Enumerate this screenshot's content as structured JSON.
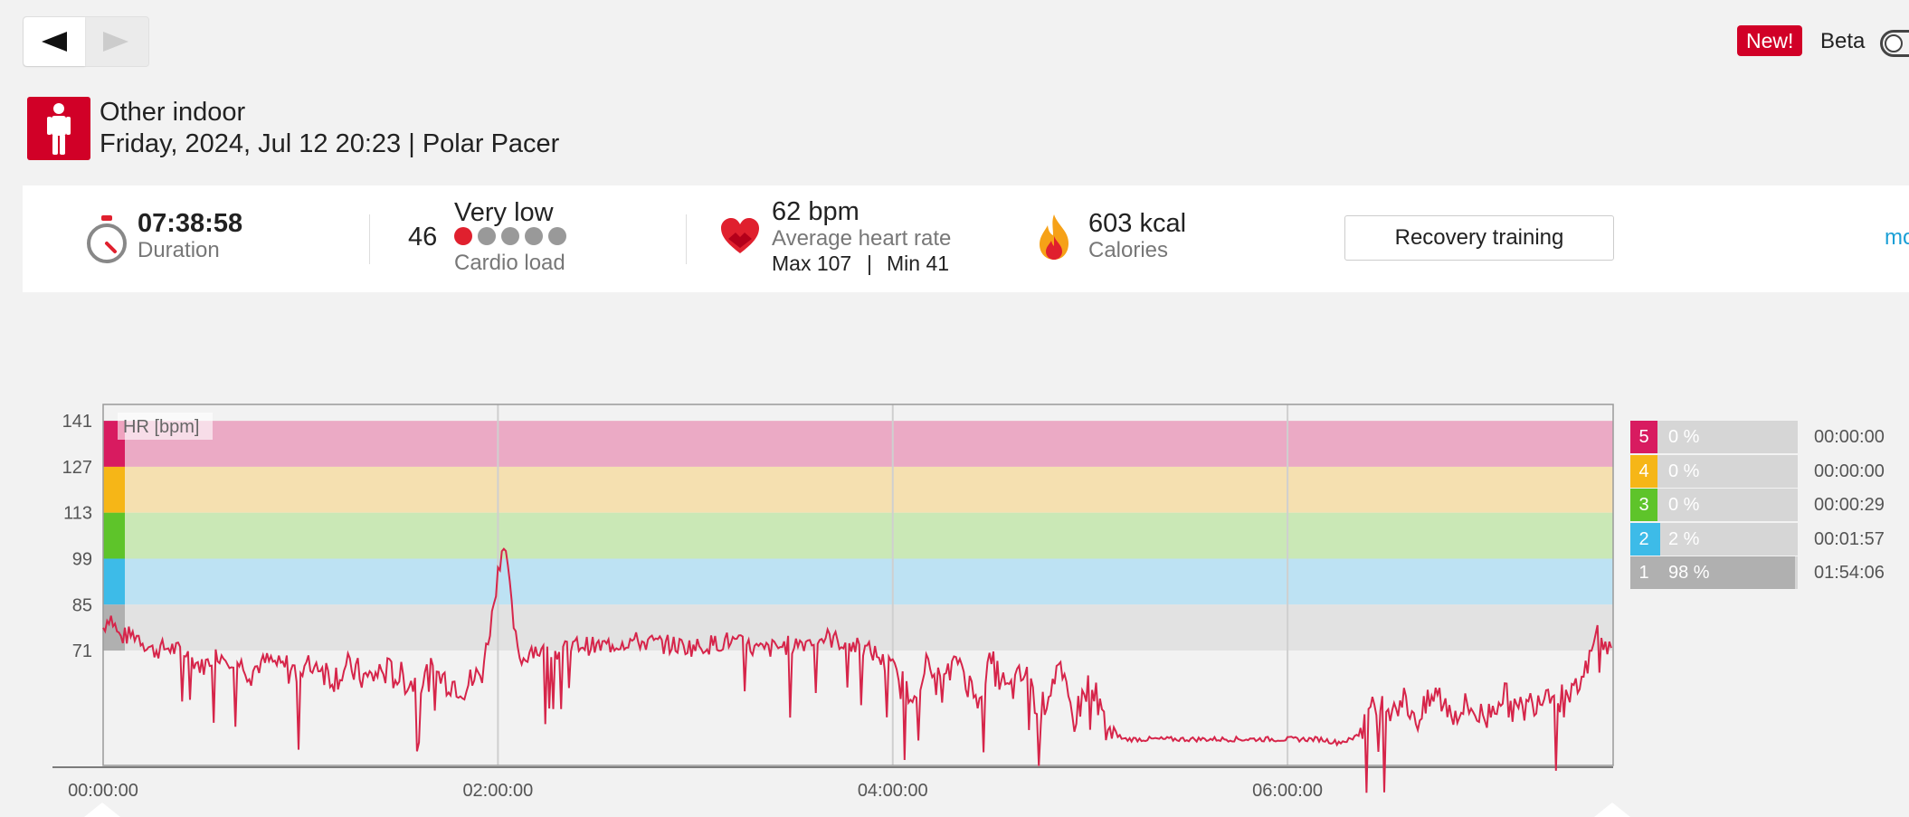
{
  "nav": {
    "back_icon": "triangle-left-icon",
    "forward_icon": "triangle-right-icon"
  },
  "top_right": {
    "new_badge": "New!",
    "beta_label": "Beta",
    "beta_enabled": false
  },
  "header": {
    "sport_icon": "person-standing-icon",
    "sport_name": "Other indoor",
    "session_line": "Friday, 2024, Jul 12 20:23 | Polar Pacer"
  },
  "summary": {
    "duration": {
      "value": "07:38:58",
      "label": "Duration",
      "icon": "stopwatch-icon"
    },
    "cardio_load": {
      "value": "46",
      "level": "Very low",
      "label": "Cardio load",
      "dots_filled": 1,
      "dots_total": 5
    },
    "heart_rate": {
      "value": "62 bpm",
      "label": "Average heart rate",
      "max_label": "Max 107",
      "separator": "|",
      "min_label": "Min 41",
      "icon": "heart-icon"
    },
    "calories": {
      "value": "603 kcal",
      "label": "Calories",
      "icon": "flame-icon"
    },
    "training_benefit": "Recovery training",
    "more_link": "mo"
  },
  "colors": {
    "accent": "#d10027",
    "hr_line": "#d6254a",
    "zone5": "#d81b60",
    "zone4": "#f6b617",
    "zone3": "#5ec42a",
    "zone2": "#3dbbe8",
    "zone1": "#b0b0b0",
    "zone5_band": "#ebaac5",
    "zone4_band": "#f5e0b0",
    "zone3_band": "#cae8b6",
    "zone2_band": "#bde2f3",
    "zone1_band": "#e2e2e2"
  },
  "chart_data": {
    "type": "line",
    "title": "",
    "ylabel": "HR [bpm]",
    "xlabel": "",
    "y_ticks": [
      141,
      127,
      113,
      99,
      85,
      71
    ],
    "x_tick_labels": [
      "00:00:00",
      "02:00:00",
      "04:00:00",
      "06:00:00"
    ],
    "x_tick_seconds": [
      0,
      7200,
      14400,
      21600
    ],
    "xlim_seconds": [
      0,
      27538
    ],
    "ylim": [
      36,
      146
    ],
    "zones": [
      {
        "zone": 5,
        "from": 127,
        "to": 141
      },
      {
        "zone": 4,
        "from": 113,
        "to": 127
      },
      {
        "zone": 3,
        "from": 99,
        "to": 113
      },
      {
        "zone": 2,
        "from": 85,
        "to": 99
      },
      {
        "zone": 1,
        "from": 71,
        "to": 85
      }
    ],
    "series": [
      {
        "x_minutes": [
          0,
          2,
          5,
          10,
          15,
          20,
          25,
          30,
          35,
          40,
          45,
          50,
          55,
          60,
          65,
          70,
          75,
          80,
          85,
          90,
          95,
          100,
          105,
          110,
          115,
          118,
          120,
          122,
          124,
          126,
          128,
          130,
          135,
          140,
          145,
          150,
          160,
          170,
          180,
          190,
          200,
          210,
          220,
          230,
          235,
          240,
          245,
          250,
          255,
          260,
          265,
          270,
          275,
          280,
          285,
          290,
          295,
          300,
          305,
          310,
          315,
          320,
          325,
          330,
          335,
          340,
          345,
          350,
          355,
          360,
          365,
          370,
          375,
          380,
          385,
          390,
          395,
          400,
          405,
          410,
          415,
          420,
          425,
          430,
          435,
          440,
          445,
          450,
          455,
          456
        ],
        "values": [
          78,
          82,
          75,
          76,
          71,
          72,
          70,
          66,
          70,
          68,
          65,
          68,
          66,
          64,
          67,
          63,
          66,
          62,
          65,
          63,
          61,
          64,
          62,
          60,
          64,
          80,
          95,
          106,
          85,
          70,
          68,
          72,
          70,
          71,
          73,
          72,
          74,
          73,
          72,
          74,
          71,
          73,
          75,
          72,
          70,
          64,
          58,
          66,
          60,
          69,
          56,
          67,
          58,
          64,
          52,
          66,
          50,
          62,
          48,
          44,
          44,
          44,
          44,
          44,
          44,
          44,
          44,
          44,
          44,
          44,
          44,
          44,
          43,
          44,
          52,
          54,
          56,
          50,
          58,
          52,
          54,
          50,
          58,
          52,
          56,
          60,
          54,
          62,
          80,
          72
        ]
      }
    ]
  },
  "zone_legend": [
    {
      "zone": "5",
      "percent": "0 %",
      "fraction": 0.0,
      "time": "00:00:00"
    },
    {
      "zone": "4",
      "percent": "0 %",
      "fraction": 0.0,
      "time": "00:00:00"
    },
    {
      "zone": "3",
      "percent": "0 %",
      "fraction": 0.0,
      "time": "00:00:29"
    },
    {
      "zone": "2",
      "percent": "2 %",
      "fraction": 0.02,
      "time": "00:01:57"
    },
    {
      "zone": "1",
      "percent": "98 %",
      "fraction": 0.98,
      "time": "01:54:06"
    }
  ]
}
